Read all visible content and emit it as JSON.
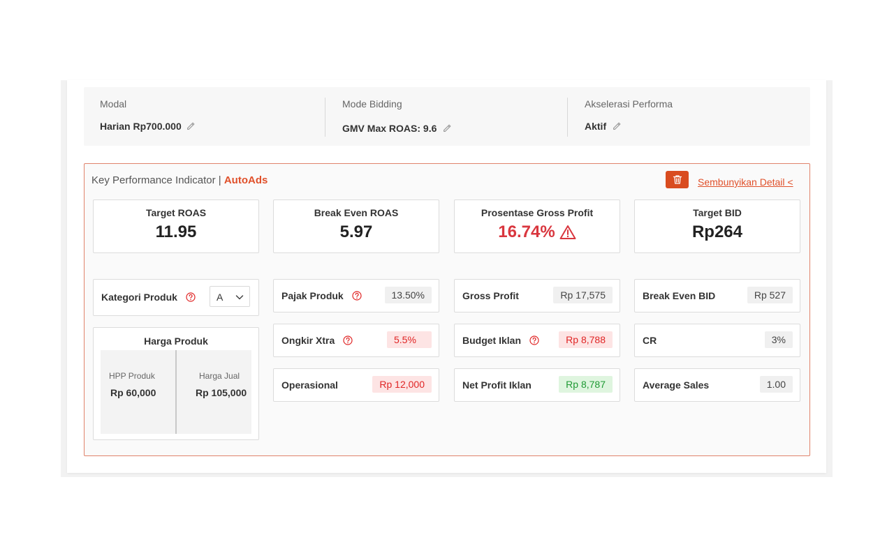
{
  "summary": {
    "modal": {
      "label": "Modal",
      "value": "Harian Rp700.000"
    },
    "bidding": {
      "label": "Mode Bidding",
      "value": "GMV Max ROAS: 9.6"
    },
    "akselerasi": {
      "label": "Akselerasi Performa",
      "value": "Aktif"
    }
  },
  "kpi": {
    "title": "Key Performance Indicator | ",
    "brand": "AutoAds",
    "hide_label": "Sembunyikan Detail <",
    "cards": {
      "target_roas": {
        "label": "Target ROAS",
        "value": "11.95"
      },
      "break_even_roas": {
        "label": "Break Even ROAS",
        "value": "5.97"
      },
      "gross_profit_pct": {
        "label": "Prosentase Gross Profit",
        "value": "16.74%"
      },
      "target_bid": {
        "label": "Target BID",
        "value": "Rp264"
      }
    },
    "kategori": {
      "label": "Kategori Produk",
      "selected": "A"
    },
    "harga": {
      "title": "Harga Produk",
      "hpp_label": "HPP Produk",
      "hpp_value": "Rp 60,000",
      "jual_label": "Harga Jual",
      "jual_value": "Rp 105,000"
    },
    "metrics": {
      "pajak": {
        "label": "Pajak Produk",
        "value": "13.50%"
      },
      "ongkir": {
        "label": "Ongkir Xtra",
        "value": "5.5%"
      },
      "operasional": {
        "label": "Operasional",
        "value": "Rp 12,000"
      },
      "gross_profit": {
        "label": "Gross Profit",
        "value": "Rp 17,575"
      },
      "budget_iklan": {
        "label": "Budget Iklan",
        "value": "Rp 8,788"
      },
      "net_profit": {
        "label": "Net Profit Iklan",
        "value": "Rp 8,787"
      },
      "break_even_bid": {
        "label": "Break Even BID",
        "value": "Rp 527"
      },
      "cr": {
        "label": "CR",
        "value": "3%"
      },
      "average_sales": {
        "label": "Average Sales",
        "value": "1.00"
      }
    }
  },
  "colors": {
    "accent": "#e0502a",
    "danger": "#d9363e",
    "success": "#1f9a34",
    "trash_button": "#d94c1f"
  },
  "icons": [
    "pencil-icon",
    "trash-icon",
    "help-icon",
    "warning-icon",
    "chevron-down-icon"
  ]
}
